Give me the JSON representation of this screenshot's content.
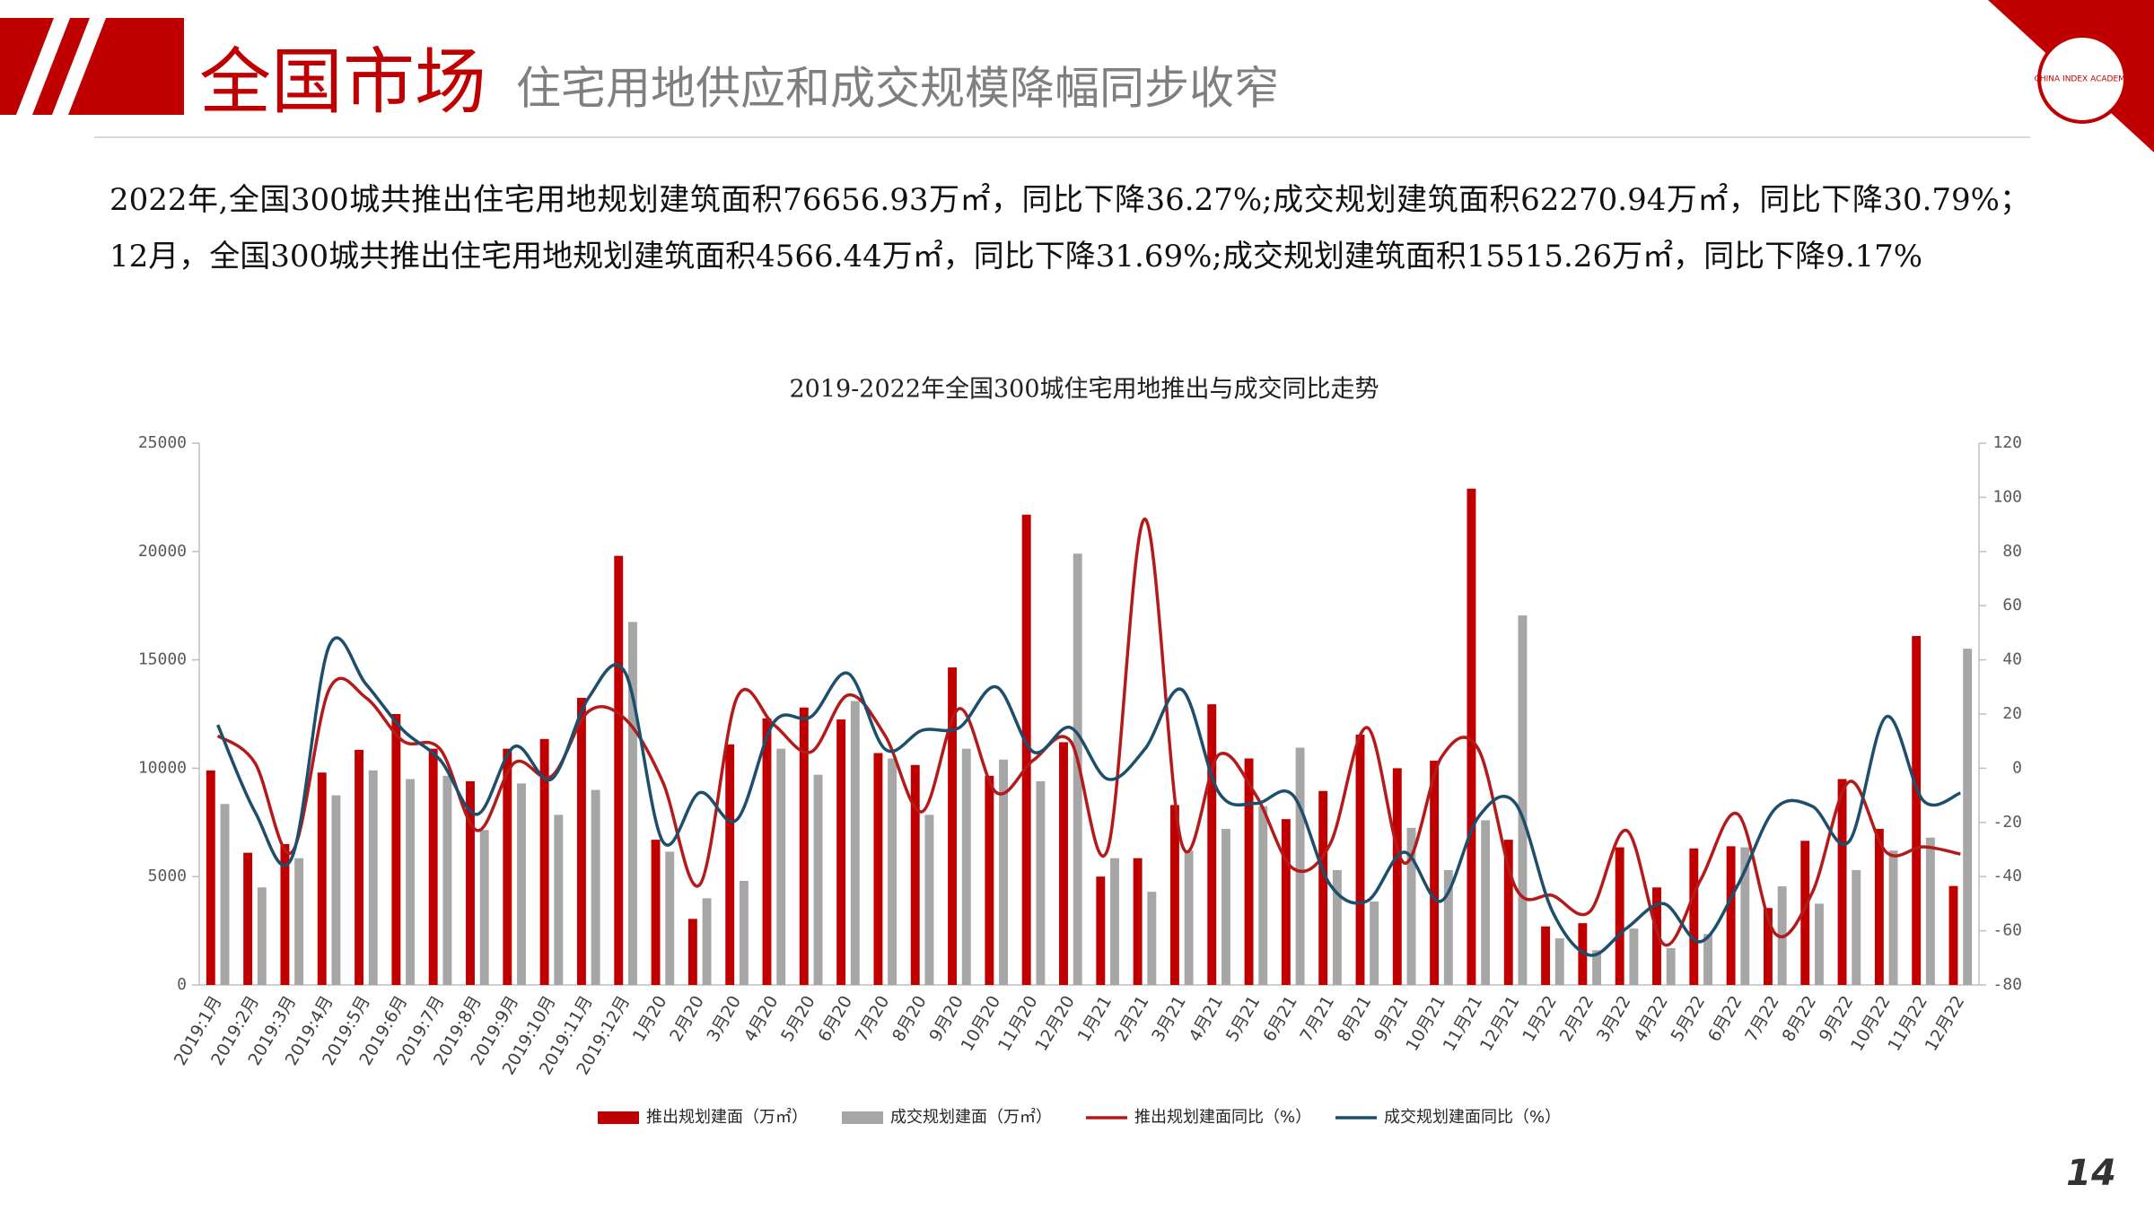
{
  "header": {
    "title": "全国市场",
    "subtitle": "住宅用地供应和成交规模降幅同步收窄",
    "logo_text": "CHINA INDEX ACADEMY"
  },
  "paragraph": "2022年,全国300城共推出住宅用地规划建筑面积76656.93万㎡，同比下降36.27%;成交规划建筑面积62270.94万㎡，同比下降30.79%；12月，全国300城共推出住宅用地规划建筑面积4566.44万㎡，同比下降31.69%;成交规划建筑面积15515.26万㎡，同比下降9.17%",
  "page_number": "14",
  "chart_data": {
    "type": "bar",
    "title": "2019-2022年全国300城住宅用地推出与成交同比走势",
    "categories": [
      "2019:1月",
      "2019:2月",
      "2019:3月",
      "2019:4月",
      "2019:5月",
      "2019:6月",
      "2019:7月",
      "2019:8月",
      "2019:9月",
      "2019:10月",
      "2019:11月",
      "2019:12月",
      "1月20",
      "2月20",
      "3月20",
      "4月20",
      "5月20",
      "6月20",
      "7月20",
      "8月20",
      "9月20",
      "10月20",
      "11月20",
      "12月20",
      "1月21",
      "2月21",
      "3月21",
      "4月21",
      "5月21",
      "6月21",
      "7月21",
      "8月21",
      "9月21",
      "10月21",
      "11月21",
      "12月21",
      "1月22",
      "2月22",
      "3月22",
      "4月22",
      "5月22",
      "6月22",
      "7月22",
      "8月22",
      "9月22",
      "10月22",
      "11月22",
      "12月22"
    ],
    "series": [
      {
        "name": "推出规划建面（万㎡）",
        "type": "bar",
        "color": "#c00000",
        "values": [
          9900,
          6100,
          6500,
          9800,
          10850,
          12500,
          10900,
          9400,
          10900,
          11350,
          13250,
          19800,
          6700,
          3050,
          11100,
          12300,
          12800,
          12250,
          10700,
          10150,
          14650,
          9650,
          21700,
          11200,
          5000,
          5850,
          8300,
          12950,
          10450,
          7650,
          8950,
          11550,
          10000,
          10350,
          22900,
          6700,
          2700,
          2850,
          6350,
          4500,
          6300,
          6400,
          3550,
          6650,
          9500,
          7200,
          16100,
          4566.44
        ]
      },
      {
        "name": "成交规划建面（万㎡）",
        "type": "bar",
        "color": "#a6a6a6",
        "values": [
          8350,
          4500,
          5850,
          8750,
          9900,
          9500,
          9650,
          7150,
          9300,
          7850,
          9000,
          16750,
          6150,
          4000,
          4800,
          10900,
          9700,
          13100,
          10450,
          7850,
          10900,
          10400,
          9400,
          19900,
          5850,
          4300,
          6200,
          7200,
          8250,
          10950,
          5300,
          3850,
          7250,
          5300,
          7600,
          17050,
          2150,
          1600,
          2600,
          1700,
          2350,
          6350,
          4550,
          3750,
          5300,
          6200,
          6800,
          15515.26
        ]
      },
      {
        "name": "推出规划建面同比（%）",
        "type": "line",
        "axis": "y2",
        "color": "#b51a1a",
        "values": [
          12,
          2,
          -31,
          29,
          26,
          10,
          7,
          -23,
          2,
          -3,
          21,
          18,
          -5,
          -43,
          26,
          16,
          6,
          27,
          12,
          -16,
          22,
          -9,
          3,
          10,
          -30,
          92,
          -28,
          5,
          -10,
          -37,
          -28,
          15,
          -35,
          4,
          7,
          -44,
          -47,
          -53,
          -23,
          -65,
          -41,
          -17,
          -61,
          -46,
          -5,
          -31,
          -29,
          -31.69
        ]
      },
      {
        "name": "成交规划建面同比（%）",
        "type": "line",
        "axis": "y2",
        "color": "#1d4e6b",
        "values": [
          16,
          -16,
          -33,
          45,
          31,
          14,
          3,
          -17,
          8,
          -4,
          26,
          35,
          -27,
          -9,
          -19,
          17,
          19,
          35,
          7,
          14,
          15,
          30,
          6,
          15,
          -4,
          7,
          29,
          -9,
          -13,
          -10,
          -43,
          -49,
          -31,
          -49,
          -18,
          -13,
          -53,
          -69,
          -59,
          -50,
          -64,
          -43,
          -15,
          -14,
          -27,
          19,
          -12,
          -9.17
        ]
      }
    ],
    "ylim": [
      0,
      25000
    ],
    "yticks": [
      0,
      5000,
      10000,
      15000,
      20000,
      25000
    ],
    "y2lim": [
      -80,
      120
    ],
    "y2ticks": [
      -80,
      -60,
      -40,
      -20,
      0,
      20,
      40,
      60,
      80,
      100,
      120
    ],
    "legend": "bottom"
  }
}
